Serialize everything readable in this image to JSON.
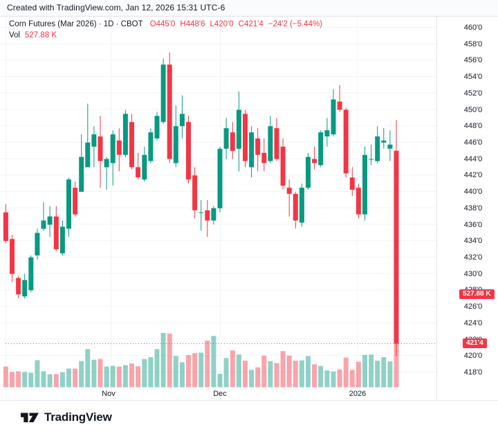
{
  "credit_bar": {
    "text": "Created with TradingView.com, Jan 12, 2026 15:31 UTC-6"
  },
  "legend": {
    "title": "Corn Futures (Mar 2026) · 1D · CBOT",
    "ohlc": [
      {
        "label": "O",
        "value": "445'0"
      },
      {
        "label": "H",
        "value": "448'6"
      },
      {
        "label": "L",
        "value": "420'0"
      },
      {
        "label": "C",
        "value": "421'4"
      }
    ],
    "change": "−24'2 (−5.44%)",
    "volume_label": "Vol",
    "volume_value": "527.88 K"
  },
  "badges": {
    "volume": "527.88 K",
    "last_price": "421'4"
  },
  "price_axis": {
    "labels": [
      "460'0",
      "458'0",
      "456'0",
      "454'0",
      "452'0",
      "450'0",
      "448'0",
      "446'0",
      "444'0",
      "442'0",
      "440'0",
      "438'0",
      "436'0",
      "434'0",
      "432'0",
      "430'0",
      "428'0",
      "426'0",
      "424'0",
      "422'0",
      "420'0",
      "418'0"
    ],
    "top_value": 460,
    "bottom_value": 418,
    "step": 2
  },
  "time_axis": [
    {
      "label": "Nov",
      "x": 157
    },
    {
      "label": "Dec",
      "x": 318
    },
    {
      "label": "2026",
      "x": 517
    }
  ],
  "footer": {
    "brand": "TradingView"
  },
  "colors": {
    "up": "#089981",
    "down": "#f23645",
    "volume_up": "rgba(8,153,129,0.45)",
    "volume_down": "rgba(242,54,69,0.45)",
    "badge": "#f23645",
    "text": "#131722",
    "grid": "#f0f3fa",
    "border": "#e0e3eb"
  },
  "chart_data": {
    "type": "candlestick",
    "title": "Corn Futures (Mar 2026)",
    "interval": "1D",
    "exchange": "CBOT",
    "last_ohlc": {
      "open": "445'0",
      "high": "448'6",
      "low": "420'0",
      "close": "421'4",
      "change": "−24'2",
      "change_pct": "−5.44%"
    },
    "last_volume_k": 527.88,
    "ylim": [
      417,
      461
    ],
    "y_tick_step": 2,
    "price_format": "cents-and-eighths",
    "x_labels": [
      "Nov",
      "Dec",
      "2026"
    ],
    "grid": true,
    "volume_overlay": true,
    "candle_format": [
      "open",
      "high",
      "low",
      "close",
      "volume_K"
    ],
    "candles": [
      [
        437.5,
        438.5,
        433.75,
        434,
        117
      ],
      [
        434.25,
        434.75,
        429,
        430,
        86
      ],
      [
        429.5,
        429.75,
        427,
        427.5,
        90
      ],
      [
        427.25,
        430,
        427,
        429.25,
        86
      ],
      [
        428,
        432.25,
        427.75,
        432,
        82
      ],
      [
        432.25,
        435.5,
        431.75,
        435,
        153
      ],
      [
        435.5,
        438.75,
        435.25,
        436.5,
        90
      ],
      [
        436,
        438.25,
        434.5,
        437,
        74
      ],
      [
        437,
        438.25,
        432.75,
        433,
        75
      ],
      [
        432.5,
        436.5,
        432.25,
        435.75,
        85
      ],
      [
        435.5,
        441.75,
        434.5,
        441.5,
        106
      ],
      [
        440.5,
        441.25,
        437,
        437.25,
        105
      ],
      [
        440,
        447,
        440,
        444.25,
        148
      ],
      [
        443,
        450.75,
        443,
        446,
        216
      ],
      [
        445.5,
        448,
        443,
        447,
        156
      ],
      [
        446.75,
        449.25,
        440.5,
        443.75,
        160
      ],
      [
        443,
        444.25,
        440.25,
        444,
        117
      ],
      [
        443.5,
        447.5,
        440.75,
        447,
        121
      ],
      [
        446.25,
        447.75,
        442.5,
        444.5,
        117
      ],
      [
        444.5,
        450,
        444.25,
        449.5,
        125
      ],
      [
        448.5,
        449.5,
        442.75,
        443,
        134
      ],
      [
        443,
        444.75,
        441.5,
        441.75,
        119
      ],
      [
        441.5,
        445.5,
        441.25,
        444.5,
        160
      ],
      [
        443.75,
        447.75,
        443.5,
        447.25,
        170
      ],
      [
        446.5,
        449.75,
        446.25,
        449.25,
        216
      ],
      [
        448.5,
        456.25,
        448.25,
        455.5,
        307
      ],
      [
        455.5,
        457,
        443.5,
        444,
        303
      ],
      [
        443.5,
        450.5,
        443,
        448,
        177
      ],
      [
        448,
        451.75,
        446.5,
        449.5,
        141
      ],
      [
        448.5,
        449.25,
        441,
        441.5,
        182
      ],
      [
        442,
        443,
        436.75,
        437.75,
        193
      ],
      [
        437.5,
        439,
        435.25,
        437.5,
        196
      ],
      [
        437.75,
        439,
        434.5,
        436.5,
        264
      ],
      [
        436.5,
        438.25,
        436,
        438,
        290
      ],
      [
        438,
        445.5,
        437.5,
        445.25,
        76
      ],
      [
        445.25,
        449,
        444,
        447.75,
        165
      ],
      [
        447.25,
        448.5,
        444,
        445,
        208
      ],
      [
        445.25,
        452.25,
        442.5,
        450,
        185
      ],
      [
        449.5,
        450,
        443,
        443.75,
        150
      ],
      [
        443,
        448,
        441.75,
        447.25,
        98
      ],
      [
        446.5,
        447.75,
        442.5,
        444.5,
        113
      ],
      [
        444.75,
        446.5,
        442.5,
        443.5,
        179
      ],
      [
        443.75,
        449.25,
        443.5,
        448,
        147
      ],
      [
        447.75,
        449,
        443.75,
        444,
        137
      ],
      [
        445.5,
        446.5,
        440.25,
        440.75,
        204
      ],
      [
        440.5,
        441.5,
        437,
        439.75,
        179
      ],
      [
        439.75,
        440,
        435.5,
        436.5,
        150
      ],
      [
        436.25,
        441,
        435.75,
        440.5,
        152
      ],
      [
        440.5,
        444.75,
        440.25,
        444.25,
        176
      ],
      [
        444,
        445.5,
        442.75,
        443.5,
        130
      ],
      [
        443.25,
        447.5,
        443,
        447.25,
        121
      ],
      [
        446.75,
        449,
        445.5,
        447.5,
        95
      ],
      [
        447,
        452.5,
        446.75,
        451.25,
        89
      ],
      [
        451,
        453,
        449.75,
        450,
        101
      ],
      [
        450,
        450.25,
        441.75,
        442.25,
        168
      ],
      [
        441.75,
        443,
        439.5,
        440.25,
        98
      ],
      [
        440.5,
        441,
        436.75,
        437.25,
        144
      ],
      [
        437.25,
        445.5,
        436.5,
        444.5,
        183
      ],
      [
        444,
        445.75,
        443.25,
        444,
        185
      ],
      [
        443.75,
        448,
        443.5,
        446.75,
        150
      ],
      [
        446,
        447.75,
        445.25,
        446.25,
        170
      ],
      [
        445.25,
        447.5,
        443.75,
        445.75,
        146
      ],
      [
        445,
        448.75,
        420,
        421.5,
        527.88
      ]
    ]
  }
}
